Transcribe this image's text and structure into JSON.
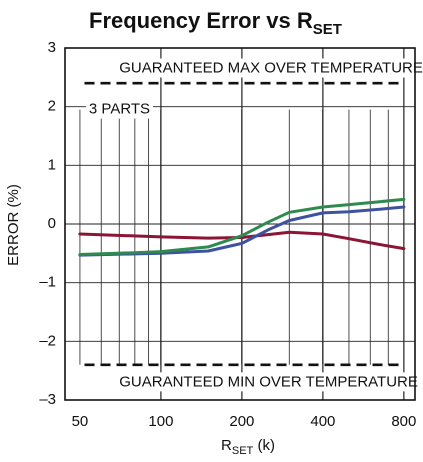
{
  "chart_data": {
    "type": "line",
    "title": {
      "main": "Frequency Error vs R",
      "sub": "SET"
    },
    "xlabel": {
      "main": "R",
      "sub": "SET",
      "tail": " (k)"
    },
    "ylabel": "ERROR (%)",
    "x_scale": "log",
    "xlim": [
      44,
      880
    ],
    "ylim": [
      -3,
      3
    ],
    "x_ticks": [
      {
        "value": 50,
        "label": "50"
      },
      {
        "value": 100,
        "label": "100"
      },
      {
        "value": 200,
        "label": "200"
      },
      {
        "value": 400,
        "label": "400"
      },
      {
        "value": 800,
        "label": "800"
      }
    ],
    "y_ticks": [
      {
        "value": 3,
        "label": "3"
      },
      {
        "value": 2,
        "label": "2"
      },
      {
        "value": 1,
        "label": "1"
      },
      {
        "value": 0,
        "label": "0"
      },
      {
        "value": -1,
        "label": "–1"
      },
      {
        "value": -2,
        "label": "–2"
      },
      {
        "value": -3,
        "label": "–3"
      }
    ],
    "grid": {
      "horizontal": [
        2,
        1,
        0,
        -1,
        -2
      ],
      "vertical": [
        60,
        70,
        80,
        90,
        100,
        200,
        300,
        400,
        500,
        600,
        700
      ],
      "thick_vertical": [
        100,
        200,
        400,
        800
      ]
    },
    "limits": [
      {
        "name": "GUARANTEED MAX OVER TEMPERATURE",
        "value": 2.4,
        "x_start": 52,
        "x_end": 800
      },
      {
        "name": "GUARANTEED MIN OVER TEMPERATURE",
        "value": -2.4,
        "x_start": 52,
        "x_end": 800
      }
    ],
    "annotations": [
      {
        "text": "GUARANTEED MAX OVER TEMPERATURE",
        "x": 70,
        "y": 2.65
      },
      {
        "text": "3 PARTS",
        "x": 54,
        "y": 1.95
      },
      {
        "text": "GUARANTEED MIN OVER TEMPERATURE",
        "x": 70,
        "y": -2.7
      }
    ],
    "series": [
      {
        "color": "#8c1535",
        "x": [
          50,
          100,
          150,
          200,
          250,
          300,
          400,
          500,
          650,
          800
        ],
        "y": [
          -0.17,
          -0.22,
          -0.24,
          -0.23,
          -0.18,
          -0.14,
          -0.17,
          -0.25,
          -0.35,
          -0.42
        ]
      },
      {
        "color": "#3d52a0",
        "x": [
          50,
          80,
          100,
          150,
          200,
          250,
          300,
          400,
          500,
          650,
          800
        ],
        "y": [
          -0.53,
          -0.51,
          -0.5,
          -0.46,
          -0.33,
          -0.1,
          0.06,
          0.19,
          0.21,
          0.25,
          0.29
        ]
      },
      {
        "color": "#2f8a4f",
        "x": [
          50,
          80,
          100,
          150,
          200,
          250,
          300,
          400,
          500,
          650,
          800
        ],
        "y": [
          -0.52,
          -0.49,
          -0.47,
          -0.39,
          -0.2,
          0.03,
          0.2,
          0.29,
          0.33,
          0.38,
          0.42
        ]
      }
    ]
  }
}
